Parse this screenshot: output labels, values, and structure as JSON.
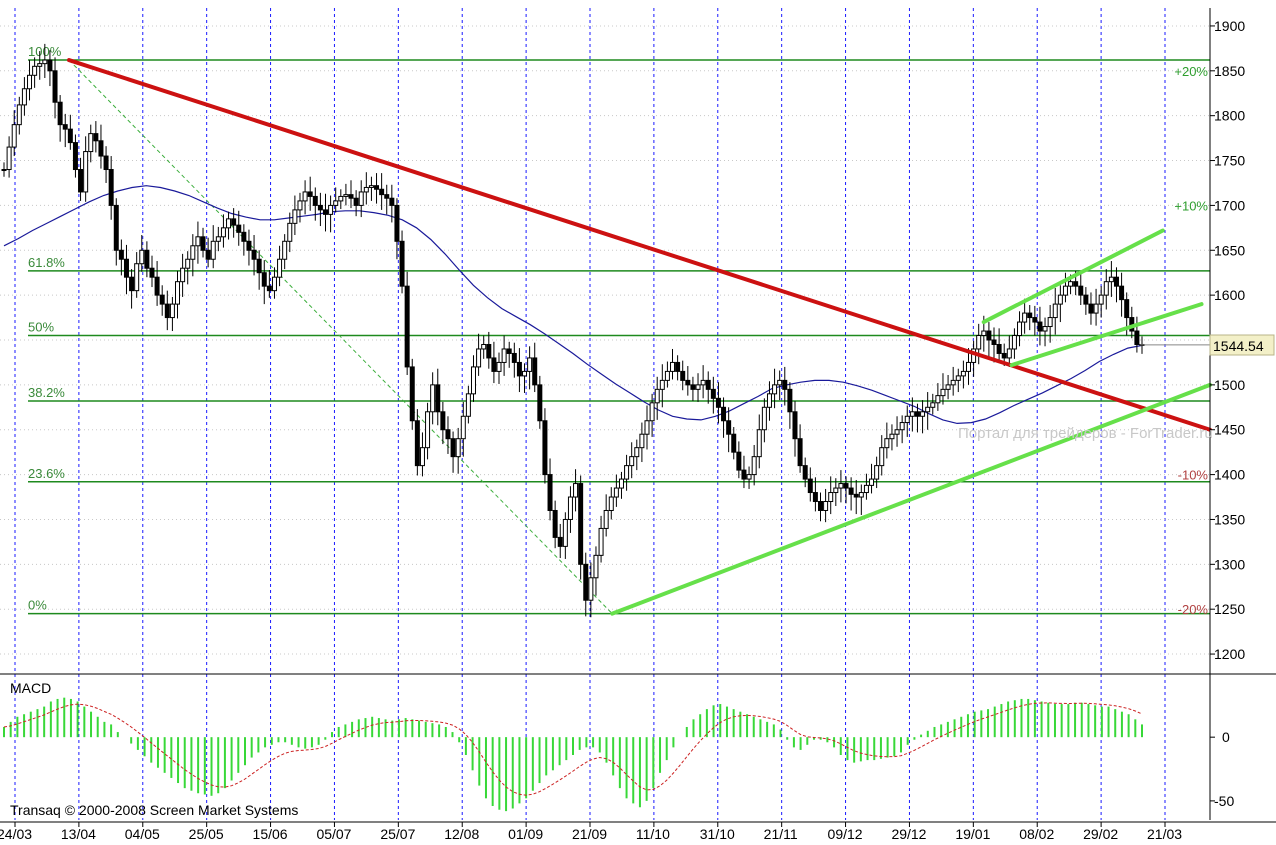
{
  "chart_data": [
    {
      "type": "candlestick",
      "ylim": [
        1180,
        1920
      ],
      "y_ticks": [
        1200,
        1250,
        1300,
        1350,
        1400,
        1450,
        1500,
        1550,
        1600,
        1650,
        1700,
        1750,
        1800,
        1850,
        1900
      ],
      "x_tick_labels": [
        "24/03",
        "13/04",
        "04/05",
        "25/05",
        "15/06",
        "05/07",
        "25/07",
        "12/08",
        "01/09",
        "21/09",
        "11/10",
        "31/10",
        "21/11",
        "09/12",
        "29/12",
        "19/01",
        "08/02",
        "29/02",
        "21/03"
      ],
      "last_price_label": "1544.54",
      "last_price": 1544.54,
      "fib_levels": [
        {
          "label": "100%",
          "value": 1862
        },
        {
          "label": "61.8%",
          "value": 1627
        },
        {
          "label": "50%",
          "value": 1555
        },
        {
          "label": "38.2%",
          "value": 1482
        },
        {
          "label": "23.6%",
          "value": 1392
        },
        {
          "label": "0%",
          "value": 1245
        }
      ],
      "pct_labels": [
        {
          "label": "+20%",
          "value": 1850,
          "sign": "pos"
        },
        {
          "label": "+10%",
          "value": 1700,
          "sign": "pos"
        },
        {
          "label": "-10%",
          "value": 1400,
          "sign": "neg"
        },
        {
          "label": "-20%",
          "value": 1250,
          "sign": "neg"
        }
      ],
      "closes": [
        1740,
        1765,
        1790,
        1812,
        1830,
        1845,
        1855,
        1858,
        1862,
        1850,
        1815,
        1790,
        1785,
        1770,
        1740,
        1715,
        1760,
        1780,
        1772,
        1755,
        1740,
        1700,
        1650,
        1640,
        1620,
        1605,
        1635,
        1650,
        1630,
        1620,
        1600,
        1590,
        1575,
        1590,
        1615,
        1630,
        1640,
        1655,
        1665,
        1650,
        1640,
        1660,
        1665,
        1675,
        1685,
        1678,
        1670,
        1660,
        1650,
        1640,
        1625,
        1610,
        1605,
        1620,
        1640,
        1660,
        1680,
        1695,
        1705,
        1715,
        1710,
        1700,
        1695,
        1690,
        1700,
        1705,
        1710,
        1712,
        1708,
        1700,
        1715,
        1720,
        1722,
        1718,
        1712,
        1708,
        1700,
        1660,
        1610,
        1520,
        1460,
        1410,
        1430,
        1470,
        1500,
        1470,
        1450,
        1440,
        1420,
        1440,
        1465,
        1490,
        1520,
        1540,
        1545,
        1530,
        1515,
        1525,
        1540,
        1535,
        1525,
        1510,
        1515,
        1530,
        1500,
        1460,
        1400,
        1360,
        1330,
        1320,
        1350,
        1375,
        1390,
        1300,
        1260,
        1285,
        1310,
        1340,
        1360,
        1375,
        1385,
        1395,
        1410,
        1420,
        1430,
        1445,
        1460,
        1480,
        1495,
        1505,
        1515,
        1525,
        1515,
        1505,
        1500,
        1495,
        1500,
        1505,
        1495,
        1485,
        1475,
        1460,
        1445,
        1425,
        1405,
        1395,
        1400,
        1420,
        1450,
        1475,
        1490,
        1500,
        1505,
        1495,
        1470,
        1440,
        1410,
        1395,
        1380,
        1370,
        1360,
        1370,
        1380,
        1385,
        1390,
        1385,
        1378,
        1375,
        1380,
        1388,
        1395,
        1410,
        1430,
        1440,
        1445,
        1450,
        1458,
        1465,
        1470,
        1465,
        1470,
        1475,
        1480,
        1488,
        1495,
        1500,
        1505,
        1510,
        1515,
        1525,
        1540,
        1555,
        1560,
        1550,
        1545,
        1535,
        1530,
        1540,
        1555,
        1570,
        1580,
        1575,
        1570,
        1560,
        1565,
        1575,
        1590,
        1600,
        1610,
        1615,
        1610,
        1600,
        1590,
        1580,
        1590,
        1600,
        1615,
        1620,
        1610,
        1595,
        1575,
        1560,
        1545,
        1544.54
      ],
      "ma": [
        1655,
        1663,
        1672,
        1680,
        1688,
        1696,
        1704,
        1711,
        1716,
        1720,
        1722,
        1720,
        1716,
        1711,
        1704,
        1697,
        1691,
        1687,
        1684,
        1684,
        1686,
        1688,
        1690,
        1693,
        1694,
        1694,
        1692,
        1689,
        1684,
        1675,
        1662,
        1646,
        1628,
        1611,
        1597,
        1585,
        1576,
        1567,
        1557,
        1546,
        1535,
        1523,
        1512,
        1501,
        1491,
        1481,
        1472,
        1465,
        1462,
        1461,
        1465,
        1471,
        1479,
        1487,
        1496,
        1500,
        1503,
        1505,
        1505,
        1503,
        1499,
        1494,
        1488,
        1482,
        1476,
        1468,
        1461,
        1457,
        1458,
        1462,
        1469,
        1477,
        1484,
        1491,
        1499,
        1507,
        1516,
        1526,
        1534,
        1541,
        1544
      ],
      "red_trend": {
        "x0": 0.057,
        "y0": 1862,
        "x1": 1.0,
        "y1": 1450
      },
      "green_support": {
        "x0": 0.506,
        "y0": 1245,
        "x1": 1.0,
        "y1": 1500
      },
      "green_channel_upper": {
        "x0": 0.813,
        "y0": 1570,
        "x1": 0.961,
        "y1": 1672
      },
      "green_channel_lower": {
        "x0": 0.836,
        "y0": 1522,
        "x1": 0.993,
        "y1": 1590
      },
      "fib_diagonal": {
        "x0": 0.057,
        "y0": 1862,
        "x1": 0.506,
        "y1": 1245
      }
    },
    {
      "type": "macd",
      "title": "MACD",
      "ylim": [
        -65,
        48
      ],
      "y_ticks": [
        0,
        -50
      ],
      "histogram": [
        8,
        12,
        16,
        18,
        20,
        22,
        24,
        28,
        30,
        31,
        30,
        28,
        24,
        20,
        16,
        12,
        10,
        4,
        0,
        -5,
        -10,
        -15,
        -20,
        -24,
        -28,
        -32,
        -36,
        -40,
        -42,
        -44,
        -45,
        -46,
        -44,
        -40,
        -34,
        -28,
        -22,
        -16,
        -12,
        -8,
        -6,
        -4,
        -4,
        -6,
        -8,
        -9,
        -8,
        -6,
        -2,
        4,
        8,
        10,
        12,
        14,
        15,
        16,
        15,
        14,
        13,
        14,
        15,
        14,
        13,
        12,
        11,
        10,
        8,
        4,
        -4,
        -14,
        -26,
        -38,
        -48,
        -54,
        -57,
        -58,
        -56,
        -52,
        -48,
        -42,
        -36,
        -30,
        -26,
        -22,
        -18,
        -14,
        -10,
        -8,
        -8,
        -12,
        -20,
        -30,
        -40,
        -48,
        -52,
        -55,
        -50,
        -40,
        -28,
        -18,
        -8,
        0,
        8,
        14,
        18,
        22,
        25,
        26,
        24,
        22,
        20,
        18,
        16,
        14,
        12,
        10,
        6,
        -2,
        -8,
        -10,
        -6,
        -2,
        -2,
        -4,
        -8,
        -14,
        -18,
        -20,
        -19,
        -18,
        -18,
        -17,
        -16,
        -15,
        -12,
        -6,
        -2,
        2,
        5,
        8,
        10,
        12,
        14,
        16,
        18,
        20,
        21,
        22,
        24,
        26,
        28,
        29,
        30,
        30,
        29,
        28,
        27,
        26,
        26,
        26,
        27,
        27,
        26,
        25,
        24,
        24,
        22,
        20,
        18,
        14,
        10
      ]
    }
  ],
  "watermark": "Портал для трейдеров - ForTrader.ru",
  "copyright": "Transaq © 2000-2008 Screen Market Systems",
  "colors": {
    "up_candle": "#000000",
    "grid_vertical": "#1a1aff",
    "fib_line": "#1e8a1e",
    "trend_red": "#cc1111",
    "trend_green": "#66e04a",
    "ma_line": "#1a1a9a",
    "macd_hist": "#38d838",
    "macd_signal": "#cc2222",
    "price_badge": "#f3f0c8"
  }
}
